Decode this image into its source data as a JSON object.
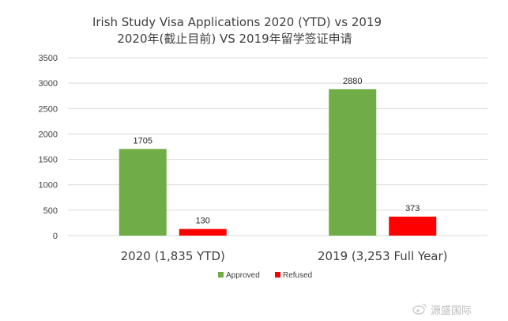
{
  "chart_data": {
    "type": "bar",
    "title": "Irish Study Visa Applications 2020 (YTD) vs 2019",
    "subtitle": "2020年(截止目前) VS 2019年留学签证申请",
    "categories": [
      "2020 (1,835  YTD)",
      "2019 (3,253 Full Year)"
    ],
    "series": [
      {
        "name": "Approved",
        "color": "#70ad47",
        "values": [
          1705,
          2880
        ]
      },
      {
        "name": "Refused",
        "color": "#ff0000",
        "values": [
          130,
          373
        ]
      }
    ],
    "ylim": [
      0,
      3500
    ],
    "yticks": [
      0,
      500,
      1000,
      1500,
      2000,
      2500,
      3000,
      3500
    ],
    "xlabel": "",
    "ylabel": "",
    "grid": true,
    "legend": "bottom-center"
  },
  "watermark": {
    "text": "源盛国际",
    "icon": "weibo-icon"
  }
}
